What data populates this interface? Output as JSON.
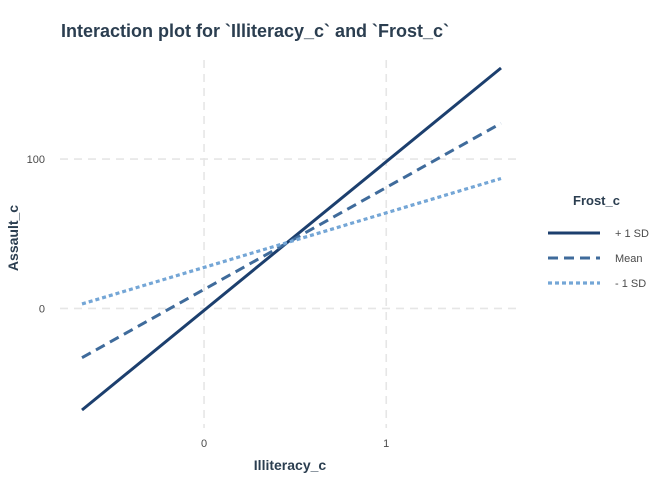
{
  "chart_data": {
    "type": "line",
    "title": "Interaction plot for `Illiteracy_c` and `Frost_c`",
    "xlabel": "Illiteracy_c",
    "ylabel": "Assault_c",
    "xlim": [
      -0.67,
      1.63
    ],
    "ylim": [
      -68,
      161
    ],
    "x_ticks": [
      0,
      1
    ],
    "y_ticks": [
      0,
      100
    ],
    "grid": true,
    "legend": {
      "title": "Frost_c",
      "position": "right"
    },
    "series": [
      {
        "name": "+ 1 SD",
        "x": [
          -0.67,
          1.63
        ],
        "y": [
          -68,
          161
        ],
        "color": "#1c3f6e",
        "dash": "solid"
      },
      {
        "name": "Mean",
        "x": [
          -0.67,
          1.63
        ],
        "y": [
          -33,
          124
        ],
        "color": "#3f6b9b",
        "dash": "dashed"
      },
      {
        "name": "- 1 SD",
        "x": [
          -0.67,
          1.63
        ],
        "y": [
          3,
          87
        ],
        "color": "#74a6d6",
        "dash": "dotted"
      }
    ]
  }
}
